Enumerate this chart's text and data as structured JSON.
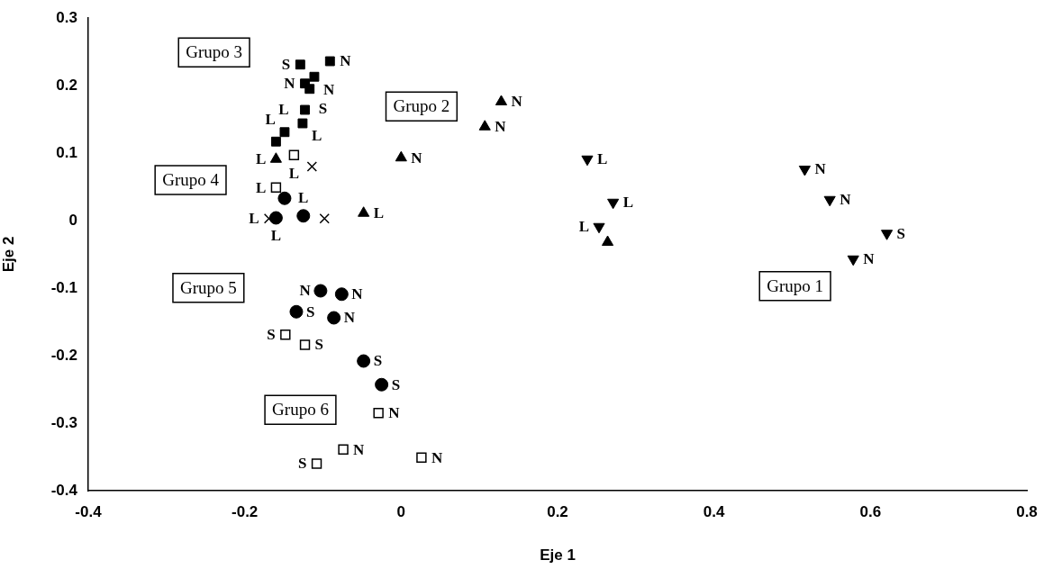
{
  "chart_data": {
    "type": "scatter",
    "xlabel": "Eje 1",
    "ylabel": "Eje 2",
    "xlim": [
      -0.4,
      0.8
    ],
    "xticks": [
      -0.4,
      -0.2,
      0,
      0.2,
      0.4,
      0.6,
      0.8
    ],
    "ylim": [
      -0.4,
      0.3
    ],
    "yticks": [
      -0.4,
      -0.3,
      -0.2,
      -0.1,
      0,
      0.1,
      0.2,
      0.3
    ],
    "grid": false,
    "legend": false,
    "series": [
      {
        "marker": "triangle-down",
        "color": "#000000",
        "x": [
          0.238,
          0.271,
          0.253,
          0.516,
          0.548,
          0.621,
          0.578
        ],
        "values": [
          0.091,
          0.027,
          -0.009,
          0.076,
          0.031,
          -0.019,
          -0.057
        ],
        "value_labels": [
          "L",
          "L",
          "L",
          "N",
          "N",
          "S",
          "N"
        ]
      },
      {
        "marker": "triangle",
        "color": "#000000",
        "x": [
          -0.16,
          -0.048,
          0,
          0.128,
          0.107,
          0.264
        ],
        "values": [
          0.091,
          0.011,
          0.093,
          0.176,
          0.139,
          -0.032
        ],
        "value_labels": [
          "L",
          "L",
          "N",
          "N",
          "N",
          null
        ]
      },
      {
        "marker": "square",
        "color": "#000000",
        "x": [
          -0.129,
          -0.091,
          -0.111,
          -0.123,
          -0.117,
          -0.123,
          -0.126,
          -0.149,
          -0.16
        ],
        "values": [
          0.231,
          0.236,
          0.213,
          0.203,
          0.195,
          0.164,
          0.144,
          0.131,
          0.117
        ],
        "value_labels": [
          "S",
          "N",
          "N",
          "N",
          "S",
          "L",
          "L",
          "L",
          null
        ]
      },
      {
        "marker": "square-open",
        "color": "#000000",
        "x": [
          -0.137,
          -0.16,
          -0.148,
          -0.123,
          -0.029,
          -0.074,
          -0.108,
          0.026
        ],
        "values": [
          0.097,
          0.049,
          -0.169,
          -0.184,
          -0.285,
          -0.339,
          -0.36,
          -0.351
        ],
        "value_labels": [
          "L",
          "L",
          "S",
          "S",
          "N",
          "N",
          "S",
          "N"
        ]
      },
      {
        "marker": "circle",
        "color": "#000000",
        "x": [
          -0.149,
          -0.16,
          -0.125,
          -0.103,
          -0.076,
          -0.134,
          -0.086,
          -0.048,
          -0.025
        ],
        "values": [
          0.033,
          0.004,
          0.007,
          -0.104,
          -0.109,
          -0.135,
          -0.144,
          -0.208,
          -0.243
        ],
        "value_labels": [
          null,
          "L",
          "L",
          "N",
          "N",
          "S",
          "N",
          "S",
          "S"
        ]
      },
      {
        "marker": "cross",
        "color": "#000000",
        "x": [
          -0.114,
          -0.169,
          -0.098
        ],
        "values": [
          0.08,
          0.003,
          0.003
        ],
        "value_labels": [
          null,
          "L",
          null
        ]
      }
    ],
    "annotations": [
      "Grupo 3",
      "Grupo 2",
      "Grupo 4",
      "Grupo 5",
      "Grupo 6",
      "Grupo 1"
    ]
  }
}
